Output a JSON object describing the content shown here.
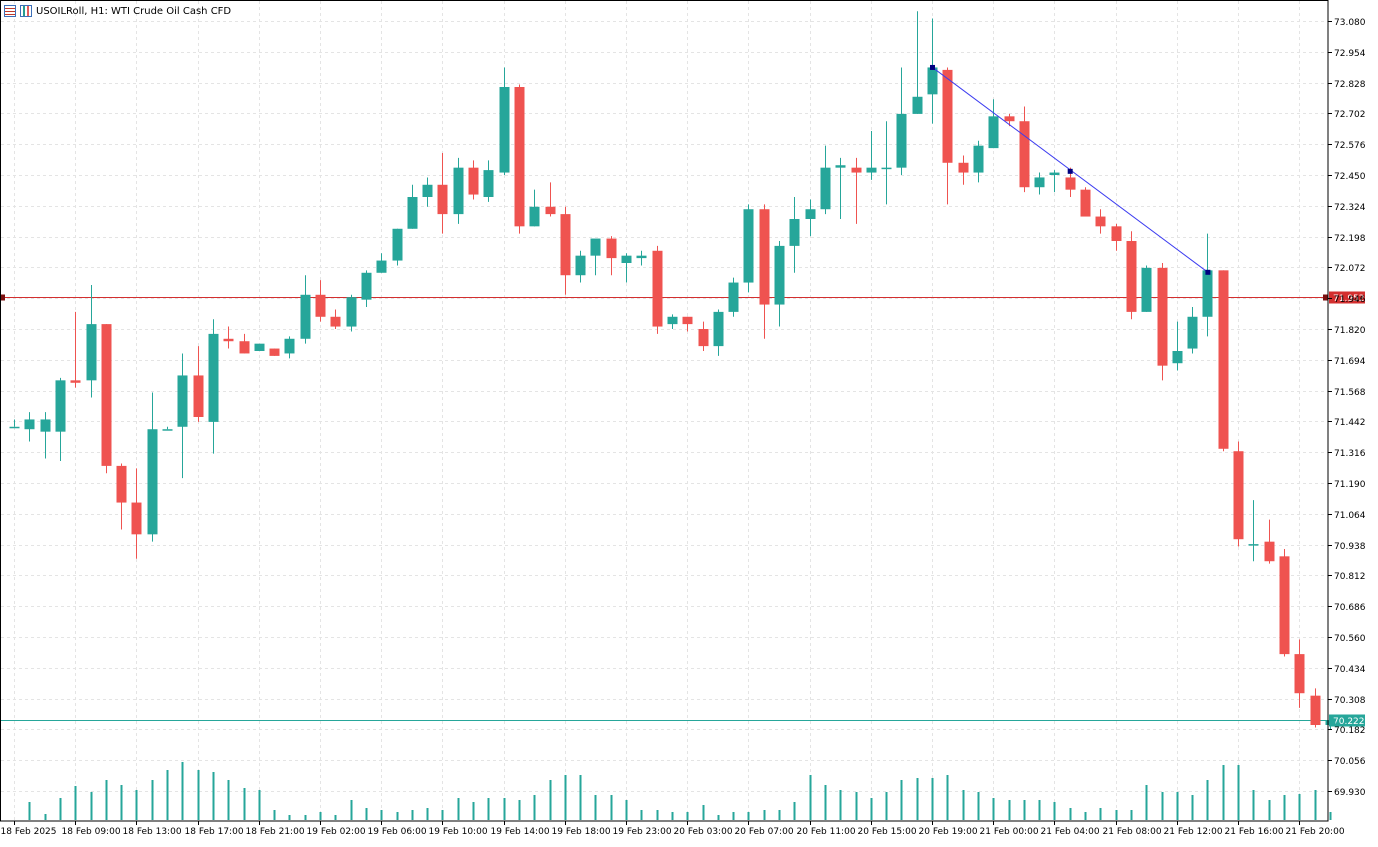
{
  "header": {
    "title": "USOILRoll, H1:  WTI Crude Oil Cash CFD",
    "icons": [
      "list-icon",
      "chart-bars-icon"
    ]
  },
  "colors": {
    "bull": "#26a69a",
    "bear": "#ef5350",
    "grid": "#e4e4e4",
    "trendline": "#3c3cf0",
    "level_line": "#d32f2f",
    "current_line": "#26a69a"
  },
  "chart_data": {
    "type": "candlestick",
    "symbol": "USOILRoll",
    "timeframe": "H1",
    "ylim": [
      69.88,
      73.12
    ],
    "y_ticks": [
      "73.080",
      "72.954",
      "72.828",
      "72.702",
      "72.576",
      "72.450",
      "72.324",
      "72.198",
      "72.072",
      "71.946",
      "71.820",
      "71.694",
      "71.568",
      "71.442",
      "71.316",
      "71.190",
      "71.064",
      "70.938",
      "70.812",
      "70.686",
      "70.560",
      "70.434",
      "70.308",
      "70.182",
      "70.056",
      "69.930"
    ],
    "x_labels": [
      "18 Feb 2025",
      "18 Feb 09:00",
      "18 Feb 13:00",
      "18 Feb 17:00",
      "18 Feb 21:00",
      "19 Feb 02:00",
      "19 Feb 06:00",
      "19 Feb 10:00",
      "19 Feb 14:00",
      "19 Feb 18:00",
      "19 Feb 23:00",
      "20 Feb 03:00",
      "20 Feb 07:00",
      "20 Feb 11:00",
      "20 Feb 15:00",
      "20 Feb 19:00",
      "21 Feb 00:00",
      "21 Feb 04:00",
      "21 Feb 08:00",
      "21 Feb 12:00",
      "21 Feb 16:00",
      "21 Feb 20:00"
    ],
    "x_label_every": 4,
    "candles": [
      [
        71.42,
        71.45,
        71.42,
        71.42
      ],
      [
        71.41,
        71.48,
        71.36,
        71.45
      ],
      [
        71.4,
        71.48,
        71.29,
        71.45
      ],
      [
        71.4,
        71.62,
        71.28,
        71.61
      ],
      [
        71.61,
        71.89,
        71.58,
        71.6
      ],
      [
        71.61,
        72.0,
        71.54,
        71.84
      ],
      [
        71.84,
        71.84,
        71.23,
        71.26
      ],
      [
        71.26,
        71.27,
        71.0,
        71.11
      ],
      [
        71.11,
        71.25,
        70.88,
        70.98
      ],
      [
        70.98,
        71.56,
        70.95,
        71.41
      ],
      [
        71.41,
        71.42,
        71.41,
        71.41
      ],
      [
        71.42,
        71.72,
        71.21,
        71.63
      ],
      [
        71.63,
        71.75,
        71.44,
        71.46
      ],
      [
        71.44,
        71.86,
        71.31,
        71.8
      ],
      [
        71.78,
        71.83,
        71.74,
        71.77
      ],
      [
        71.77,
        71.8,
        71.72,
        71.72
      ],
      [
        71.73,
        71.75,
        71.73,
        71.76
      ],
      [
        71.74,
        71.74,
        71.71,
        71.71
      ],
      [
        71.72,
        71.79,
        71.7,
        71.78
      ],
      [
        71.78,
        72.04,
        71.76,
        71.96
      ],
      [
        71.96,
        72.02,
        71.85,
        71.87
      ],
      [
        71.87,
        71.9,
        71.82,
        71.83
      ],
      [
        71.83,
        71.96,
        71.81,
        71.95
      ],
      [
        71.94,
        72.06,
        71.91,
        72.05
      ],
      [
        72.05,
        72.13,
        72.05,
        72.1
      ],
      [
        72.1,
        72.23,
        72.08,
        72.23
      ],
      [
        72.23,
        72.41,
        72.23,
        72.36
      ],
      [
        72.36,
        72.44,
        72.32,
        72.41
      ],
      [
        72.41,
        72.54,
        72.21,
        72.29
      ],
      [
        72.29,
        72.52,
        72.25,
        72.48
      ],
      [
        72.48,
        72.51,
        72.35,
        72.37
      ],
      [
        72.36,
        72.51,
        72.34,
        72.47
      ],
      [
        72.46,
        72.89,
        72.45,
        72.81
      ],
      [
        72.81,
        72.82,
        72.21,
        72.24
      ],
      [
        72.24,
        72.39,
        72.24,
        72.32
      ],
      [
        72.32,
        72.42,
        72.28,
        72.29
      ],
      [
        72.29,
        72.32,
        71.96,
        72.04
      ],
      [
        72.04,
        72.14,
        72.01,
        72.12
      ],
      [
        72.12,
        72.18,
        72.04,
        72.19
      ],
      [
        72.19,
        72.2,
        72.04,
        72.11
      ],
      [
        72.09,
        72.13,
        72.01,
        72.12
      ],
      [
        72.11,
        72.14,
        72.08,
        72.12
      ],
      [
        72.14,
        72.16,
        71.8,
        71.83
      ],
      [
        71.84,
        71.88,
        71.82,
        71.87
      ],
      [
        71.87,
        71.87,
        71.81,
        71.84
      ],
      [
        71.82,
        71.85,
        71.73,
        71.75
      ],
      [
        71.75,
        71.9,
        71.71,
        71.89
      ],
      [
        71.89,
        72.03,
        71.87,
        72.01
      ],
      [
        72.01,
        72.33,
        71.97,
        72.31
      ],
      [
        72.31,
        72.33,
        71.78,
        71.92
      ],
      [
        71.92,
        72.18,
        71.83,
        72.16
      ],
      [
        72.16,
        72.36,
        72.05,
        72.27
      ],
      [
        72.27,
        72.35,
        72.2,
        72.31
      ],
      [
        72.31,
        72.57,
        72.29,
        72.48
      ],
      [
        72.48,
        72.52,
        72.27,
        72.49
      ],
      [
        72.48,
        72.52,
        72.25,
        72.46
      ],
      [
        72.46,
        72.63,
        72.43,
        72.48
      ],
      [
        72.48,
        72.67,
        72.33,
        72.48
      ],
      [
        72.48,
        72.89,
        72.45,
        72.7
      ],
      [
        72.7,
        73.12,
        72.7,
        72.77
      ],
      [
        72.78,
        73.09,
        72.66,
        72.89
      ],
      [
        72.88,
        72.89,
        72.33,
        72.5
      ],
      [
        72.5,
        72.53,
        72.41,
        72.46
      ],
      [
        72.46,
        72.59,
        72.42,
        72.57
      ],
      [
        72.56,
        72.76,
        72.56,
        72.69
      ],
      [
        72.69,
        72.7,
        72.65,
        72.67
      ],
      [
        72.67,
        72.73,
        72.38,
        72.4
      ],
      [
        72.4,
        72.46,
        72.37,
        72.44
      ],
      [
        72.45,
        72.47,
        72.38,
        72.46
      ],
      [
        72.44,
        72.48,
        72.36,
        72.39
      ],
      [
        72.39,
        72.4,
        72.29,
        72.28
      ],
      [
        72.28,
        72.31,
        72.21,
        72.24
      ],
      [
        72.24,
        72.25,
        72.14,
        72.18
      ],
      [
        72.18,
        72.22,
        71.86,
        71.89
      ],
      [
        71.89,
        72.08,
        71.89,
        72.07
      ],
      [
        72.07,
        72.09,
        71.61,
        71.67
      ],
      [
        71.68,
        71.85,
        71.65,
        71.73
      ],
      [
        71.74,
        71.91,
        71.72,
        71.87
      ],
      [
        71.87,
        72.21,
        71.79,
        72.06
      ],
      [
        72.06,
        72.06,
        71.32,
        71.33
      ],
      [
        71.32,
        71.36,
        70.93,
        70.96
      ],
      [
        70.94,
        71.12,
        70.87,
        70.94
      ],
      [
        70.95,
        71.04,
        70.86,
        70.87
      ],
      [
        70.89,
        70.92,
        70.48,
        70.49
      ],
      [
        70.49,
        70.55,
        70.27,
        70.33
      ],
      [
        70.32,
        70.35,
        70.19,
        70.2
      ],
      [
        70.2,
        70.23,
        70.18,
        70.22
      ]
    ],
    "volumes": [
      0,
      18,
      6,
      22,
      34,
      28,
      40,
      35,
      30,
      40,
      50,
      58,
      50,
      48,
      40,
      32,
      30,
      10,
      5,
      5,
      8,
      5,
      20,
      12,
      10,
      8,
      10,
      12,
      10,
      22,
      18,
      22,
      22,
      20,
      25,
      40,
      45,
      45,
      25,
      25,
      20,
      10,
      10,
      8,
      8,
      15,
      5,
      8,
      8,
      10,
      10,
      18,
      45,
      35,
      30,
      28,
      22,
      28,
      40,
      42,
      42,
      45,
      30,
      28,
      22,
      20,
      20,
      20,
      18,
      12,
      8,
      12,
      10,
      10,
      35,
      28,
      28,
      25,
      40,
      55,
      55,
      30,
      20,
      25,
      26,
      30,
      8
    ],
    "volume_max": 80,
    "level_line": {
      "value": 71.952,
      "label": "71.952"
    },
    "current_line": {
      "value": 70.222,
      "label": "70.222"
    },
    "trendline": {
      "points": [
        [
          60,
          72.89
        ],
        [
          69,
          72.465
        ],
        [
          78,
          72.052
        ]
      ]
    }
  }
}
